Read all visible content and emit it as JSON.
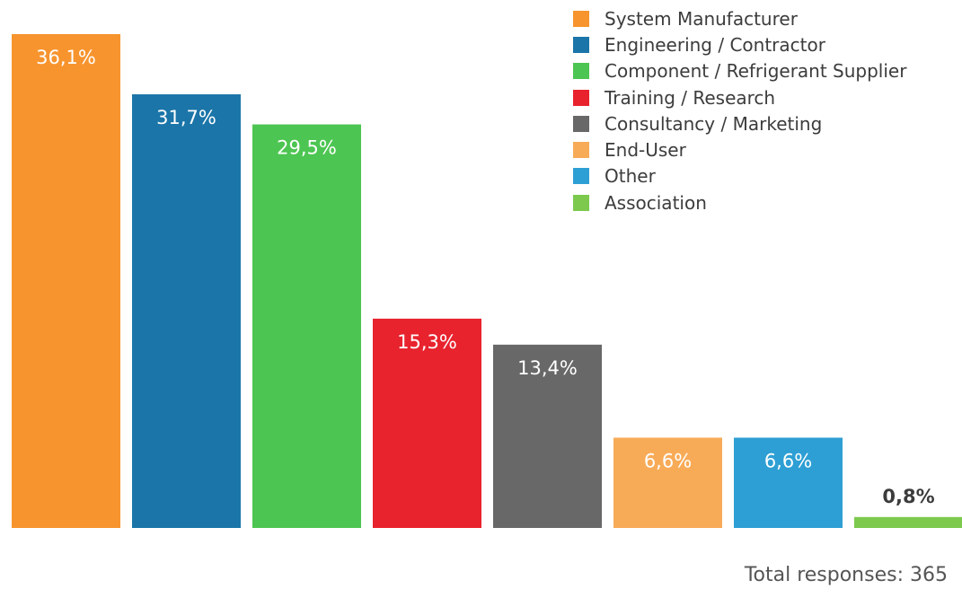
{
  "chart_data": {
    "type": "bar",
    "categories": [
      "System Manufacturer",
      "Engineering / Contractor",
      "Component / Refrigerant Supplier",
      "Training / Research",
      "Consultancy / Marketing",
      "End-User",
      "Other",
      "Association"
    ],
    "values": [
      36.1,
      31.7,
      29.5,
      15.3,
      13.4,
      6.6,
      6.6,
      0.8
    ],
    "value_labels": [
      "36,1%",
      "31,7%",
      "29,5%",
      "15,3%",
      "13,4%",
      "6,6%",
      "6,6%",
      "0,8%"
    ],
    "colors": [
      "#f7942e",
      "#1b75a8",
      "#4dc552",
      "#e8232e",
      "#686868",
      "#f8ab57",
      "#2e9fd4",
      "#7cc94e"
    ],
    "ylim": [
      0,
      36.1
    ],
    "grid": false,
    "legend_position": "top-right"
  },
  "footer": {
    "total_label": "Total responses:",
    "total_value": "365"
  }
}
